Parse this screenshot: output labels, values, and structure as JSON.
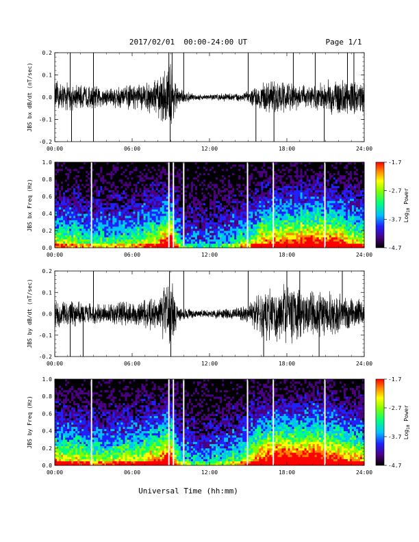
{
  "header": {
    "date_range": "2017/02/01  00:00-24:00 UT",
    "page": "Page 1/1"
  },
  "colorbar": {
    "label_prefix": "Log",
    "label_sub": "10",
    "label_suffix": " Power",
    "ticks": [
      -1.7,
      -2.7,
      -3.7,
      -4.7
    ],
    "range": [
      -4.7,
      -1.7
    ],
    "colors": [
      "#000000",
      "#4b0082",
      "#2020ff",
      "#00c0ff",
      "#00ff80",
      "#80ff00",
      "#ffff00",
      "#ff8000",
      "#ff0000"
    ]
  },
  "time_axis": {
    "ticks": [
      "00:00",
      "06:00",
      "12:00",
      "18:00",
      "24:00"
    ],
    "xlabel": "Universal Time (hh:mm)"
  },
  "chart_data": [
    {
      "type": "line",
      "panel": "bx",
      "ylabel": "JBS bx dB/dt (nT/sec)",
      "xlim": [
        0,
        24
      ],
      "ylim": [
        -0.2,
        0.2
      ],
      "yticks": [
        "0.2",
        "0.1",
        "0.0",
        "-0.1",
        "-0.2"
      ],
      "envelope": {
        "x": [
          0,
          1,
          2,
          3,
          4,
          5,
          6,
          7,
          8,
          8.5,
          9,
          9.5,
          10,
          11,
          12,
          13,
          14,
          15,
          15.5,
          16,
          17,
          18,
          19,
          20,
          21,
          22,
          23,
          24
        ],
        "y": [
          0.08,
          0.07,
          0.06,
          0.06,
          0.05,
          0.06,
          0.06,
          0.07,
          0.1,
          0.14,
          0.2,
          0.05,
          0.03,
          0.015,
          0.015,
          0.02,
          0.02,
          0.03,
          0.05,
          0.07,
          0.08,
          0.08,
          0.06,
          0.06,
          0.08,
          0.1,
          0.08,
          0.08
        ]
      },
      "spikes": [
        {
          "x": 1.2,
          "y": 0.2
        },
        {
          "x": 1.3,
          "y": -0.2
        },
        {
          "x": 3.0,
          "y": -0.2
        },
        {
          "x": 3.0,
          "y": 0.2
        },
        {
          "x": 8.85,
          "y": 0.2
        },
        {
          "x": 8.95,
          "y": -0.2
        },
        {
          "x": 9.1,
          "y": 0.2
        },
        {
          "x": 10.0,
          "y": 0.2
        },
        {
          "x": 15.0,
          "y": 0.2
        },
        {
          "x": 15.6,
          "y": -0.2
        },
        {
          "x": 17.0,
          "y": -0.2
        },
        {
          "x": 18.5,
          "y": 0.2
        },
        {
          "x": 20.2,
          "y": 0.2
        },
        {
          "x": 20.9,
          "y": -0.2
        },
        {
          "x": 22.7,
          "y": 0.2
        },
        {
          "x": 23.2,
          "y": 0.2
        }
      ]
    },
    {
      "type": "heatmap",
      "panel": "bx",
      "ylabel": "JBS bx Freq (Hz)",
      "xlim": [
        0,
        24
      ],
      "ylim": [
        0,
        1.0
      ],
      "yticks": [
        "1.0",
        "0.8",
        "0.6",
        "0.4",
        "0.2",
        "0.0"
      ],
      "zlim": [
        -4.7,
        -1.7
      ],
      "activity": {
        "x": [
          0,
          1,
          2,
          3,
          4,
          5,
          6,
          7,
          8,
          8.5,
          9,
          9.5,
          10,
          11,
          12,
          13,
          14,
          15,
          15.5,
          16,
          17,
          18,
          19,
          20,
          21,
          22,
          23,
          24
        ],
        "level": [
          0.6,
          0.55,
          0.5,
          0.45,
          0.45,
          0.5,
          0.5,
          0.55,
          0.65,
          0.8,
          0.9,
          0.45,
          0.35,
          0.3,
          0.3,
          0.35,
          0.4,
          0.5,
          0.6,
          0.7,
          0.75,
          0.8,
          0.8,
          0.85,
          0.85,
          0.8,
          0.7,
          0.6
        ]
      },
      "gaps": [
        2.85,
        8.85,
        9.2,
        10.0,
        14.95,
        16.95,
        20.95
      ]
    },
    {
      "type": "line",
      "panel": "by",
      "ylabel": "JBS by dB/dt (nT/sec)",
      "xlim": [
        0,
        24
      ],
      "ylim": [
        -0.2,
        0.2
      ],
      "yticks": [
        "0.2",
        "0.1",
        "0.0",
        "-0.1",
        "-0.2"
      ],
      "envelope": {
        "x": [
          0,
          1,
          2,
          3,
          4,
          5,
          6,
          7,
          8,
          8.5,
          9,
          9.5,
          10,
          11,
          12,
          13,
          14,
          15,
          15.5,
          16,
          17,
          18,
          19,
          20,
          21,
          22,
          23,
          24
        ],
        "y": [
          0.08,
          0.07,
          0.06,
          0.06,
          0.05,
          0.06,
          0.06,
          0.07,
          0.1,
          0.14,
          0.2,
          0.05,
          0.03,
          0.02,
          0.02,
          0.03,
          0.03,
          0.05,
          0.09,
          0.12,
          0.14,
          0.16,
          0.13,
          0.12,
          0.12,
          0.1,
          0.08,
          0.07
        ]
      },
      "spikes": [
        {
          "x": 1.2,
          "y": -0.2
        },
        {
          "x": 2.2,
          "y": -0.2
        },
        {
          "x": 3.0,
          "y": 0.2
        },
        {
          "x": 8.9,
          "y": 0.2
        },
        {
          "x": 9.0,
          "y": -0.2
        },
        {
          "x": 10.0,
          "y": 0.2
        },
        {
          "x": 15.0,
          "y": 0.2
        },
        {
          "x": 16.2,
          "y": -0.2
        },
        {
          "x": 18.0,
          "y": 0.2
        },
        {
          "x": 19.0,
          "y": 0.2
        },
        {
          "x": 20.5,
          "y": -0.2
        },
        {
          "x": 22.3,
          "y": 0.2
        }
      ]
    },
    {
      "type": "heatmap",
      "panel": "by",
      "ylabel": "JBS by Freq (Hz)",
      "xlim": [
        0,
        24
      ],
      "ylim": [
        0,
        1.0
      ],
      "yticks": [
        "1.0",
        "0.8",
        "0.6",
        "0.4",
        "0.2",
        "0.0"
      ],
      "zlim": [
        -4.7,
        -1.7
      ],
      "activity": {
        "x": [
          0,
          1,
          2,
          3,
          4,
          5,
          6,
          7,
          8,
          8.5,
          9,
          9.5,
          10,
          11,
          12,
          13,
          14,
          15,
          15.5,
          16,
          17,
          18,
          19,
          20,
          21,
          22,
          23,
          24
        ],
        "level": [
          0.7,
          0.65,
          0.6,
          0.55,
          0.55,
          0.6,
          0.6,
          0.65,
          0.75,
          0.85,
          0.95,
          0.5,
          0.4,
          0.35,
          0.35,
          0.4,
          0.45,
          0.6,
          0.75,
          0.85,
          0.9,
          0.95,
          0.95,
          0.95,
          0.9,
          0.85,
          0.75,
          0.65
        ]
      },
      "gaps": [
        2.85,
        8.85,
        9.2,
        10.0,
        14.95,
        16.95,
        20.95
      ]
    }
  ]
}
